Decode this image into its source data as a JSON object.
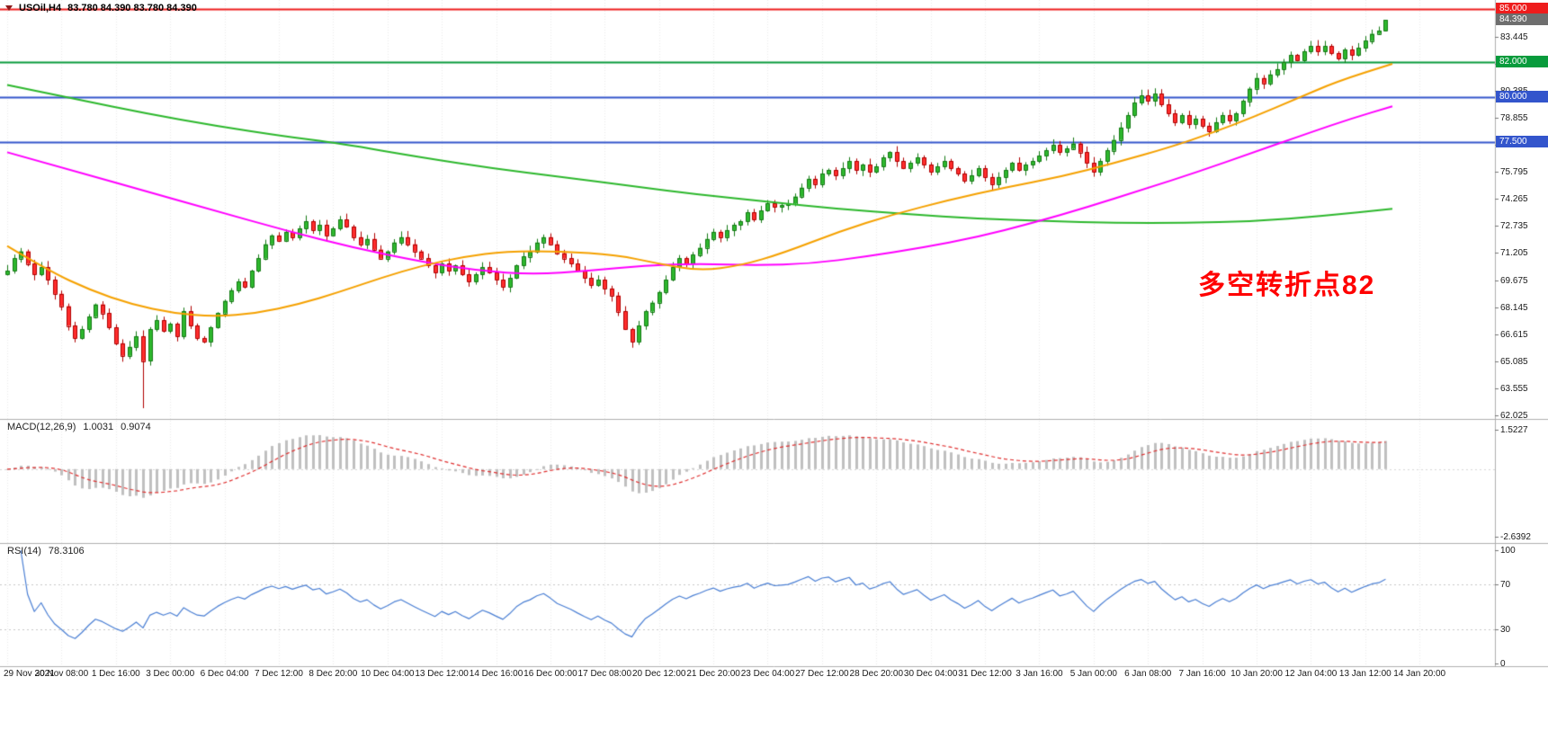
{
  "window": {
    "title_symbol": "USOil,H4",
    "title_ohlc": "83.780 84.390 83.780 84.390"
  },
  "chart_data": {
    "type": "candlestick",
    "symbol": "USOil",
    "timeframe": "H4",
    "price_axis_range": [
      61.9,
      85.6
    ],
    "grid": "vertical-dotted",
    "x_labels": [
      "29 Nov 2021",
      "30 Nov 08:00",
      "1 Dec 16:00",
      "3 Dec 00:00",
      "6 Dec 04:00",
      "7 Dec 12:00",
      "8 Dec 20:00",
      "10 Dec 04:00",
      "13 Dec 12:00",
      "14 Dec 16:00",
      "16 Dec 00:00",
      "17 Dec 08:00",
      "20 Dec 12:00",
      "21 Dec 20:00",
      "23 Dec 04:00",
      "27 Dec 12:00",
      "28 Dec 20:00",
      "30 Dec 04:00",
      "31 Dec 12:00",
      "3 Jan 16:00",
      "5 Jan 00:00",
      "6 Jan 08:00",
      "7 Jan 16:00",
      "10 Jan 20:00",
      "12 Jan 04:00",
      "13 Jan 12:00",
      "14 Jan 20:00"
    ],
    "price_ticks": [
      "83.445",
      "81.915",
      "80.385",
      "78.855",
      "77.325",
      "75.795",
      "74.265",
      "72.735",
      "71.205",
      "69.675",
      "68.145",
      "66.615",
      "65.085",
      "63.555",
      "62.025"
    ],
    "first_open": 70.0,
    "closes": [
      70.2,
      70.9,
      71.3,
      70.6,
      70.0,
      70.4,
      69.7,
      68.9,
      68.2,
      67.1,
      66.4,
      66.9,
      67.6,
      68.3,
      67.8,
      67.0,
      66.1,
      65.4,
      65.9,
      66.5,
      65.1,
      66.9,
      67.4,
      66.8,
      67.2,
      66.5,
      67.9,
      67.1,
      66.4,
      66.2,
      67.0,
      67.8,
      68.5,
      69.1,
      69.6,
      69.3,
      70.2,
      70.9,
      71.7,
      72.2,
      71.9,
      72.4,
      72.1,
      72.6,
      73.0,
      72.5,
      72.8,
      72.2,
      72.6,
      73.1,
      72.7,
      72.1,
      71.7,
      72.0,
      71.4,
      70.9,
      71.3,
      71.8,
      72.1,
      71.7,
      71.3,
      70.9,
      70.5,
      70.1,
      70.6,
      70.2,
      70.5,
      70.0,
      69.6,
      70.0,
      70.4,
      70.1,
      69.7,
      69.3,
      69.8,
      70.5,
      71.0,
      71.3,
      71.8,
      72.1,
      71.7,
      71.2,
      70.9,
      70.6,
      70.2,
      69.8,
      69.4,
      69.7,
      69.2,
      68.8,
      67.9,
      66.9,
      66.2,
      67.1,
      67.9,
      68.4,
      69.0,
      69.7,
      70.4,
      70.9,
      70.6,
      71.1,
      71.5,
      72.0,
      72.4,
      72.1,
      72.5,
      72.8,
      73.0,
      73.5,
      73.1,
      73.6,
      74.0,
      73.8,
      73.9,
      74.0,
      74.4,
      74.9,
      75.4,
      75.1,
      75.7,
      75.9,
      75.6,
      76.0,
      76.4,
      75.9,
      76.2,
      75.8,
      76.1,
      76.6,
      76.9,
      76.4,
      76.0,
      76.3,
      76.6,
      76.2,
      75.8,
      76.1,
      76.4,
      76.0,
      75.7,
      75.3,
      75.6,
      76.0,
      75.5,
      75.1,
      75.5,
      75.9,
      76.3,
      75.9,
      76.2,
      76.4,
      76.7,
      77.0,
      77.3,
      76.9,
      77.1,
      77.4,
      76.9,
      76.3,
      75.8,
      76.4,
      77.0,
      77.6,
      78.3,
      79.0,
      79.7,
      80.1,
      79.8,
      80.2,
      79.6,
      79.1,
      78.6,
      79.0,
      78.5,
      78.8,
      78.4,
      78.1,
      78.6,
      79.0,
      78.7,
      79.1,
      79.8,
      80.5,
      81.1,
      80.8,
      81.3,
      81.6,
      82.0,
      82.4,
      82.1,
      82.6,
      82.9,
      82.6,
      82.9,
      82.5,
      82.2,
      82.7,
      82.4,
      82.8,
      83.2,
      83.6,
      83.78,
      84.39
    ],
    "wick_overrides": {
      "20": {
        "low": 62.43
      },
      "92": {
        "low": 65.85
      },
      "203": {
        "high": 84.39,
        "low": 83.78
      }
    },
    "hlines": [
      {
        "price": "85.000",
        "label": "85.000",
        "color": "#ee1c1c",
        "width": 2
      },
      {
        "price": "82.000",
        "label": "82.000",
        "color": "#089b3c",
        "width": 2
      },
      {
        "price": "80.000",
        "label": "80.000",
        "color": "#3355cc",
        "width": 2
      },
      {
        "price": "77.500",
        "label": "77.500",
        "color": "#3355cc",
        "width": 2
      }
    ],
    "current_price": {
      "value": "84.390",
      "label": "84.390"
    },
    "moving_averages": [
      {
        "name": "slow-ma",
        "color": "#2db82d",
        "points": [
          [
            0,
            80.7
          ],
          [
            0.05,
            79.9
          ],
          [
            0.1,
            79.1
          ],
          [
            0.15,
            78.4
          ],
          [
            0.2,
            77.8
          ],
          [
            0.24,
            77.4
          ],
          [
            0.3,
            76.6
          ],
          [
            0.35,
            76.0
          ],
          [
            0.4,
            75.5
          ],
          [
            0.45,
            75.0
          ],
          [
            0.5,
            74.5
          ],
          [
            0.55,
            74.1
          ],
          [
            0.6,
            73.7
          ],
          [
            0.65,
            73.4
          ],
          [
            0.7,
            73.15
          ],
          [
            0.75,
            73.0
          ],
          [
            0.8,
            72.9
          ],
          [
            0.85,
            72.9
          ],
          [
            0.9,
            73.0
          ],
          [
            0.95,
            73.3
          ],
          [
            1.0,
            73.7
          ]
        ]
      },
      {
        "name": "medium-ma",
        "color": "#ff00ff",
        "points": [
          [
            0,
            76.9
          ],
          [
            0.05,
            75.8
          ],
          [
            0.1,
            74.7
          ],
          [
            0.15,
            73.6
          ],
          [
            0.2,
            72.5
          ],
          [
            0.25,
            71.5
          ],
          [
            0.3,
            70.7
          ],
          [
            0.34,
            70.2
          ],
          [
            0.38,
            70.0
          ],
          [
            0.42,
            70.2
          ],
          [
            0.46,
            70.5
          ],
          [
            0.5,
            70.6
          ],
          [
            0.54,
            70.5
          ],
          [
            0.58,
            70.6
          ],
          [
            0.62,
            71.0
          ],
          [
            0.66,
            71.5
          ],
          [
            0.7,
            72.1
          ],
          [
            0.74,
            72.9
          ],
          [
            0.78,
            73.8
          ],
          [
            0.82,
            74.8
          ],
          [
            0.86,
            75.8
          ],
          [
            0.9,
            76.9
          ],
          [
            0.94,
            78.0
          ],
          [
            0.97,
            78.8
          ],
          [
            1.0,
            79.5
          ]
        ]
      },
      {
        "name": "fast-ma",
        "color": "#f5a100",
        "points": [
          [
            0,
            71.6
          ],
          [
            0.03,
            70.2
          ],
          [
            0.06,
            69.1
          ],
          [
            0.09,
            68.3
          ],
          [
            0.12,
            67.8
          ],
          [
            0.15,
            67.6
          ],
          [
            0.18,
            67.8
          ],
          [
            0.21,
            68.3
          ],
          [
            0.24,
            69.0
          ],
          [
            0.27,
            69.8
          ],
          [
            0.3,
            70.5
          ],
          [
            0.33,
            71.0
          ],
          [
            0.36,
            71.3
          ],
          [
            0.4,
            71.3
          ],
          [
            0.44,
            71.1
          ],
          [
            0.47,
            70.6
          ],
          [
            0.5,
            70.2
          ],
          [
            0.53,
            70.5
          ],
          [
            0.56,
            71.2
          ],
          [
            0.6,
            72.4
          ],
          [
            0.64,
            73.4
          ],
          [
            0.68,
            74.2
          ],
          [
            0.72,
            74.9
          ],
          [
            0.76,
            75.5
          ],
          [
            0.8,
            76.3
          ],
          [
            0.84,
            77.2
          ],
          [
            0.87,
            78.0
          ],
          [
            0.9,
            78.9
          ],
          [
            0.93,
            79.9
          ],
          [
            0.96,
            80.9
          ],
          [
            1.0,
            81.9
          ]
        ]
      }
    ],
    "annotation": {
      "text": "多空转折点82",
      "color": "#ff0000"
    },
    "macd": {
      "label": "MACD(12,26,9)",
      "value_main": "1.0031",
      "value_signal": "0.9074",
      "axis_max_label": "1.5227",
      "axis_min_label": "-2.6392",
      "params": {
        "fast": 12,
        "slow": 26,
        "signal": 9
      }
    },
    "rsi": {
      "label": "RSI(14)",
      "value": "78.3106",
      "levels": [
        30,
        70
      ],
      "axis_labels": [
        "100",
        "70",
        "30",
        "0"
      ]
    },
    "colors": {
      "up_fill": "#2eb82e",
      "up_border": "#157a15",
      "down_fill": "#ff2d2d",
      "down_border": "#b00000",
      "macd_hist": "#c0c0c0",
      "macd_signal": "#e03030",
      "rsi_line": "#4a7fd4",
      "current_price_bg": "#6e6e6e",
      "annotation": "#ff0000"
    }
  }
}
